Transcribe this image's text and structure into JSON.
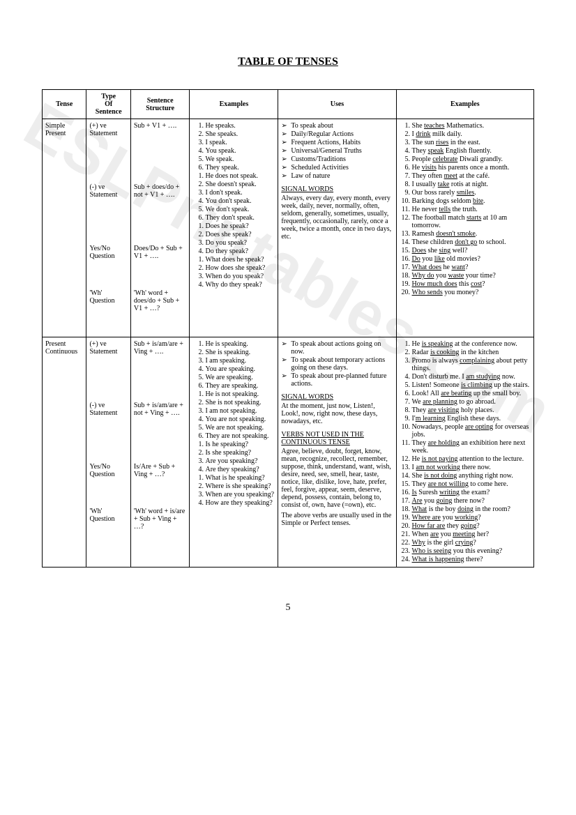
{
  "title": "TABLE OF TENSES",
  "pageNumber": "5",
  "watermark": "ESLPrintables.com",
  "headers": {
    "tense": "Tense",
    "type": "Type\nOf\nSentence",
    "structure": "Sentence\nStructure",
    "examples1": "Examples",
    "uses": "Uses",
    "examples2": "Examples"
  },
  "rows": [
    {
      "tense": "Simple\nPresent",
      "types": [
        {
          "label": "(+) ve\nStatement",
          "struct": "Sub + V1 + ….",
          "ex": [
            "He speaks.",
            "She speaks.",
            "I speak.",
            "You speak.",
            "We speak.",
            "They speak."
          ]
        },
        {
          "label": "(-) ve\nStatement",
          "struct": "Sub + does/do + not + V1 + ….",
          "ex": [
            "He does not speak.",
            "She doesn't speak.",
            "I don't speak.",
            "You don't speak.",
            "We don't speak.",
            "They don't speak."
          ]
        },
        {
          "label": "Yes/No\nQuestion",
          "struct": "Does/Do + Sub + V1 + ….",
          "ex": [
            "Does he speak?",
            "Does she speak?",
            "Do you speak?",
            "Do they speak?"
          ]
        },
        {
          "label": "'Wh'\nQuestion",
          "struct": "'Wh' word + does/do + Sub + V1 + …?",
          "ex": [
            "What does he speak?",
            "How does she speak?",
            "When do you speak?",
            "Why do they speak?"
          ]
        }
      ],
      "uses": {
        "bullets": [
          "To speak about",
          "Daily/Regular Actions",
          "Frequent Actions, Habits",
          "Universal/General Truths",
          "Customs/Traditions",
          "Scheduled Activities",
          "Law of nature"
        ],
        "signalHead": "SIGNAL WORDS",
        "signalBody": "Always, every day, every month, every week, daily, never, normally, often, seldom, generally, sometimes, usually, frequently, occasionally, rarely, once a week, twice a month, once in two days, etc."
      },
      "examples2": [
        {
          "pre": "She ",
          "u": "teaches",
          "post": " Mathematics."
        },
        {
          "pre": "I ",
          "u": "drink",
          "post": " milk daily."
        },
        {
          "pre": "The sun ",
          "u": "rises",
          "post": " in the east."
        },
        {
          "pre": "They ",
          "u": "speak",
          "post": " English fluently."
        },
        {
          "pre": "People ",
          "u": "celebrate",
          "post": " Diwali grandly."
        },
        {
          "pre": "He ",
          "u": "visits",
          "post": " his parents once a month."
        },
        {
          "pre": "They often ",
          "u": "meet",
          "post": " at the café."
        },
        {
          "pre": "I usually ",
          "u": "take",
          "post": " rotis at night."
        },
        {
          "pre": "Our boss rarely ",
          "u": "smiles",
          "post": "."
        },
        {
          "pre": "Barking dogs seldom ",
          "u": "bite",
          "post": "."
        },
        {
          "pre": "He never ",
          "u": "tells",
          "post": " the truth."
        },
        {
          "pre": "The football match ",
          "u": "starts",
          "post": " at 10 am tomorrow."
        },
        {
          "pre": "Ramesh ",
          "u": "doesn't smoke",
          "post": "."
        },
        {
          "pre": "These children ",
          "u": "don't go",
          "post": " to school."
        },
        {
          "pre": "",
          "u": "Does",
          "post": " she ",
          "u2": "sing",
          "post2": " well?"
        },
        {
          "pre": "",
          "u": "Do",
          "post": " you ",
          "u2": "like",
          "post2": " old movies?"
        },
        {
          "pre": "",
          "u": "What does",
          "post": " he ",
          "u2": "want",
          "post2": "?"
        },
        {
          "pre": "",
          "u": "Why do",
          "post": " you ",
          "u2": "waste",
          "post2": " your time?"
        },
        {
          "pre": "",
          "u": "How much does",
          "post": " this ",
          "u2": "cost",
          "post2": "?"
        },
        {
          "pre": "",
          "u": "Who sends",
          "post": " you money?"
        }
      ]
    },
    {
      "tense": "Present\nContinuous",
      "types": [
        {
          "label": "(+) ve\nStatement",
          "struct": "Sub + is/am/are + Ving + ….",
          "ex": [
            "He is speaking.",
            "She is speaking.",
            "I am speaking.",
            "You are speaking.",
            "We are speaking.",
            "They are speaking."
          ]
        },
        {
          "label": "(-) ve\nStatement",
          "struct": "Sub + is/am/are + not + Ving + ….",
          "ex": [
            "He is not speaking.",
            "She is not speaking.",
            "I am not speaking.",
            "You are not speaking.",
            "We are not speaking.",
            "They are not speaking."
          ]
        },
        {
          "label": "Yes/No\nQuestion",
          "struct": "Is/Are + Sub + Ving + …?",
          "ex": [
            "Is he speaking?",
            "Is she speaking?",
            "Are you speaking?",
            "Are they speaking?"
          ]
        },
        {
          "label": "'Wh'\nQuestion",
          "struct": "'Wh' word + is/are + Sub + Ving + …?",
          "ex": [
            "What is he speaking?",
            "Where is she speaking?",
            "When are you speaking?",
            "How are they speaking?"
          ]
        }
      ],
      "uses": {
        "bullets": [
          "To speak about actions going on now.",
          "To speak about temporary actions going on these days.",
          "To speak about pre-planned future actions."
        ],
        "signalHead": "SIGNAL WORDS",
        "signalBody": "At the moment, just now, Listen!, Look!, now, right now, these days, nowadays, etc.",
        "verbsHead": "VERBS NOT USED IN THE CONTINUOUS TENSE",
        "verbsBody": "Agree, believe, doubt, forget, know, mean, recognize, recollect, remember, suppose, think, understand, want, wish, desire, need, see, smell, hear, taste, notice, like, dislike, love, hate, prefer, feel, forgive, appear, seem, deserve, depend, possess, contain, belong to, consist of, own, have (=own), etc.",
        "verbsNote": "The above verbs are usually used in the Simple or Perfect tenses."
      },
      "examples2": [
        {
          "pre": "He ",
          "u": "is speaking",
          "post": " at the conference now."
        },
        {
          "pre": "Radar ",
          "u": "is cooking",
          "post": " in the kitchen"
        },
        {
          "pre": "Promo is always ",
          "u": "complaining",
          "post": " about petty things."
        },
        {
          "pre": "Don't disturb me. I ",
          "u": "am studying",
          "post": " now."
        },
        {
          "pre": "Listen! Someone ",
          "u": "is climbing",
          "post": " up the stairs."
        },
        {
          "pre": "Look! All ",
          "u": "are beating",
          "post": " up the small boy."
        },
        {
          "pre": "We ",
          "u": "are planning",
          "post": " to go abroad."
        },
        {
          "pre": "They ",
          "u": "are visiting",
          "post": " holy places."
        },
        {
          "pre": "I'",
          "u": "m learning",
          "post": " English these days."
        },
        {
          "pre": "Nowadays, people ",
          "u": "are opting",
          "post": " for overseas jobs."
        },
        {
          "pre": "They ",
          "u": "are holding",
          "post": " an exhibition here next week."
        },
        {
          "pre": "He ",
          "u": "is not paying",
          "post": " attention to the lecture."
        },
        {
          "pre": "I ",
          "u": "am not working",
          "post": " there now."
        },
        {
          "pre": "She ",
          "u": "is not doing",
          "post": " anything right now."
        },
        {
          "pre": "They ",
          "u": "are not willing",
          "post": " to come here."
        },
        {
          "pre": "",
          "u": "Is",
          "post": " Suresh ",
          "u2": "writing",
          "post2": " the exam?"
        },
        {
          "pre": "",
          "u": "Are",
          "post": " you ",
          "u2": "going",
          "post2": " there now?"
        },
        {
          "pre": "",
          "u": "What",
          "post": " is the boy ",
          "u2": "doing",
          "post2": " in the room?"
        },
        {
          "pre": "",
          "u": "Where are",
          "post": " you ",
          "u2": "working",
          "post2": "?"
        },
        {
          "pre": "",
          "u": "How far are",
          "post": " they ",
          "u2": "going",
          "post2": "?"
        },
        {
          "pre": "When ",
          "u": "are",
          "post": " you ",
          "u2": "meeting",
          "post2": " her?"
        },
        {
          "pre": "",
          "u": "Why",
          "post": " is the girl ",
          "u2": "crying",
          "post2": "?"
        },
        {
          "pre": "",
          "u": "Who is seeing",
          "post": " you this evening?"
        },
        {
          "pre": "",
          "u": "What is happening",
          "post": " there?"
        }
      ]
    }
  ]
}
